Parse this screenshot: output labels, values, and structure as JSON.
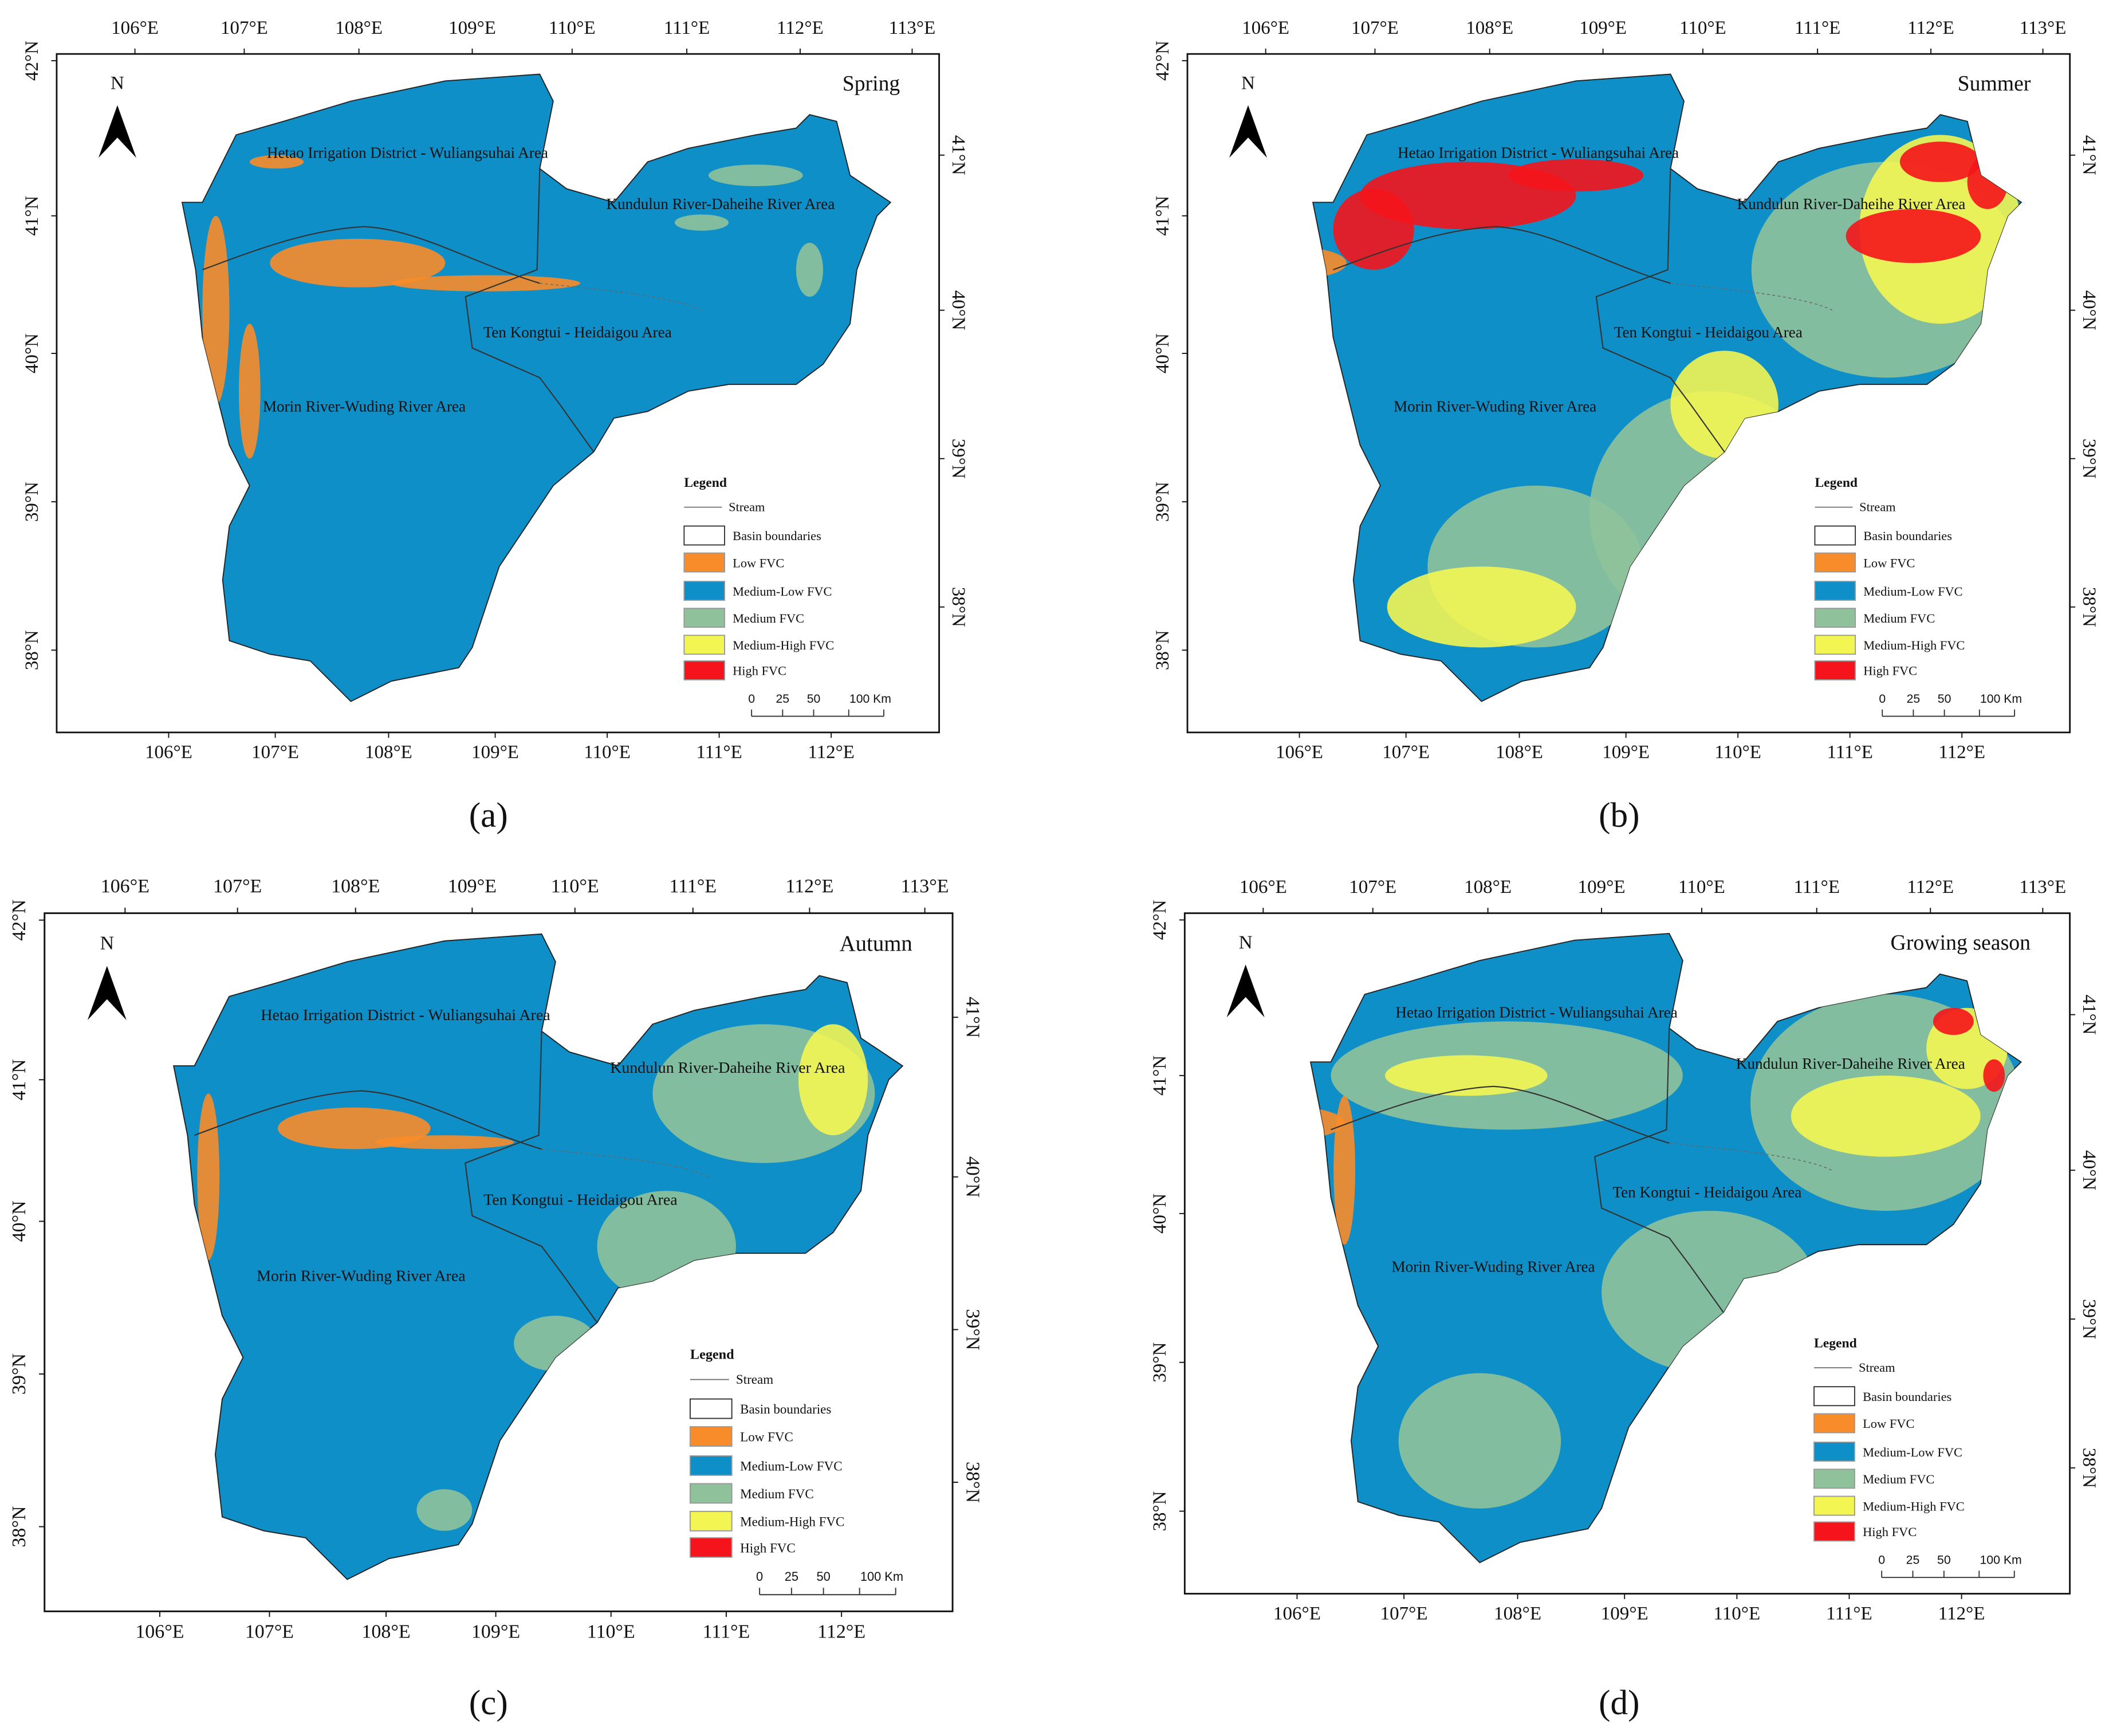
{
  "colors": {
    "low": "#f98c2a",
    "medium_low": "#0e8fc8",
    "medium": "#8fc29a",
    "medium_high": "#f3f552",
    "high": "#f5141b",
    "boundary": "#333333"
  },
  "axes": {
    "top_lon": [
      "106°E",
      "107°E",
      "108°E",
      "109°E",
      "110°E",
      "111°E",
      "112°E",
      "113°E"
    ],
    "bottom_lon": [
      "106°E",
      "107°E",
      "108°E",
      "109°E",
      "110°E",
      "111°E",
      "112°E"
    ],
    "left_lat": [
      "42°N",
      "41°N",
      "40°N",
      "39°N",
      "38°N"
    ],
    "right_lat": [
      "41°N",
      "40°N",
      "39°N",
      "38°N"
    ]
  },
  "compass": "N",
  "regions": {
    "hetao": "Hetao Irrigation District - Wuliangsuhai Area",
    "kundulun": "Kundulun River-Daheihe River Area",
    "tenkongtui": "Ten Kongtui - Heidaigou Area",
    "morin": "Morin River-Wuding River Area"
  },
  "legend": {
    "title": "Legend",
    "stream": "Stream",
    "items": [
      {
        "key": "basin",
        "label": "Basin boundaries",
        "color": "#ffffff"
      },
      {
        "key": "low",
        "label": "Low FVC",
        "color": "#f98c2a"
      },
      {
        "key": "medium_low",
        "label": "Medium-Low FVC",
        "color": "#0e8fc8"
      },
      {
        "key": "medium",
        "label": "Medium FVC",
        "color": "#8fc29a"
      },
      {
        "key": "medium_high",
        "label": "Medium-High FVC",
        "color": "#f3f552"
      },
      {
        "key": "high",
        "label": "High FVC",
        "color": "#f5141b"
      }
    ],
    "scale": [
      "0",
      "25",
      "50",
      "100 Km"
    ]
  },
  "panels": [
    {
      "id": "a",
      "label": "(a)",
      "season": "Spring"
    },
    {
      "id": "b",
      "label": "(b)",
      "season": "Summer"
    },
    {
      "id": "c",
      "label": "(c)",
      "season": "Autumn"
    },
    {
      "id": "d",
      "label": "(d)",
      "season": "Growing season"
    }
  ]
}
